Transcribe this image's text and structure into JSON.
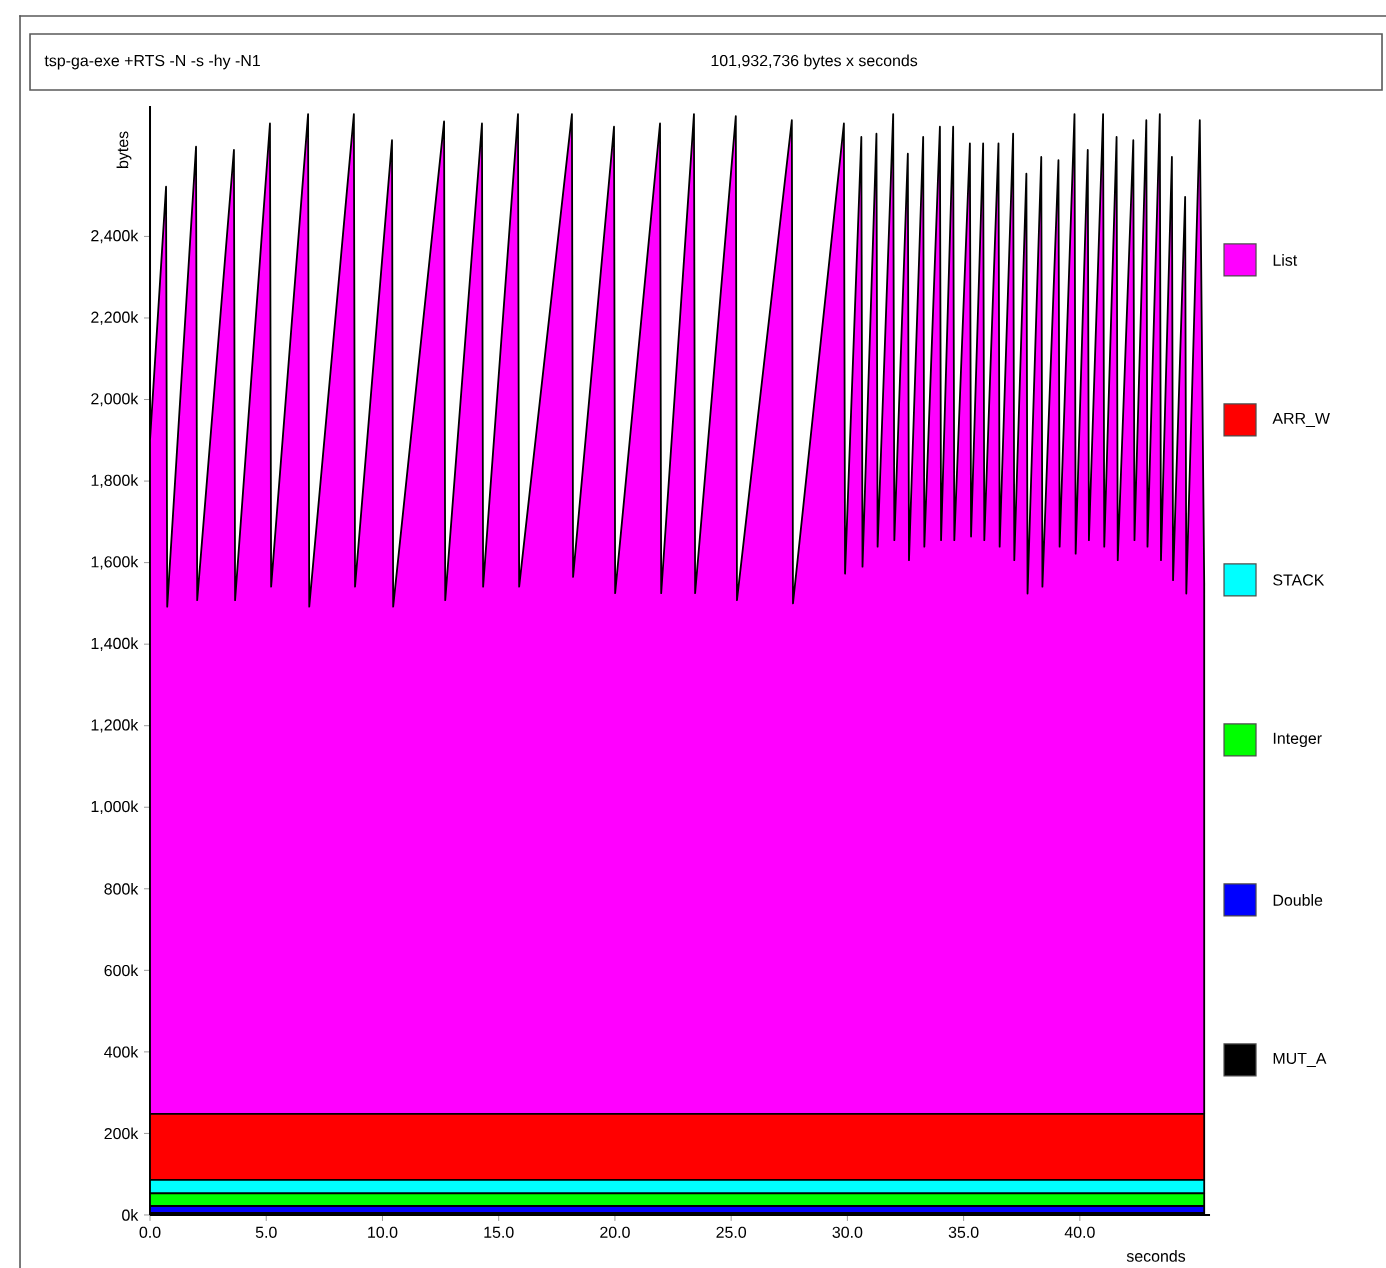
{
  "chart_data": {
    "type": "area",
    "title": "tsp-ga-exe +RTS -N -s -hy -N1",
    "subtitle": "101,932,736 bytes x seconds",
    "xlabel": "seconds",
    "ylabel": "bytes",
    "stacked": true,
    "legend": "right",
    "xlim": [
      0,
      45.6
    ],
    "ylim": [
      0,
      2720000
    ],
    "xticks": [
      {
        "value": 0,
        "label": "0.0"
      },
      {
        "value": 5,
        "label": "5.0"
      },
      {
        "value": 10,
        "label": "10.0"
      },
      {
        "value": 15,
        "label": "15.0"
      },
      {
        "value": 20,
        "label": "20.0"
      },
      {
        "value": 25,
        "label": "25.0"
      },
      {
        "value": 30,
        "label": "30.0"
      },
      {
        "value": 35,
        "label": "35.0"
      },
      {
        "value": 40,
        "label": "40.0"
      }
    ],
    "yticks": [
      {
        "value": 0,
        "label": "0k"
      },
      {
        "value": 200000,
        "label": "200k"
      },
      {
        "value": 400000,
        "label": "400k"
      },
      {
        "value": 600000,
        "label": "600k"
      },
      {
        "value": 800000,
        "label": "800k"
      },
      {
        "value": 1000000,
        "label": "1,000k"
      },
      {
        "value": 1200000,
        "label": "1,200k"
      },
      {
        "value": 1400000,
        "label": "1,400k"
      },
      {
        "value": 1600000,
        "label": "1,600k"
      },
      {
        "value": 1800000,
        "label": "1,800k"
      },
      {
        "value": 2000000,
        "label": "2,000k"
      },
      {
        "value": 2200000,
        "label": "2,200k"
      },
      {
        "value": 2400000,
        "label": "2,400k"
      }
    ],
    "x": [
      0,
      0.69,
      0.74,
      1.98,
      2.03,
      3.61,
      3.66,
      5.16,
      5.21,
      6.8,
      6.85,
      8.77,
      8.82,
      10.41,
      10.46,
      12.65,
      12.7,
      14.28,
      14.33,
      15.83,
      15.88,
      18.15,
      18.2,
      19.96,
      20.01,
      21.94,
      21.99,
      23.4,
      23.45,
      25.2,
      25.25,
      27.61,
      27.66,
      29.85,
      29.9,
      30.6,
      30.65,
      31.25,
      31.3,
      31.97,
      32.02,
      32.6,
      32.65,
      33.26,
      33.31,
      33.98,
      34.03,
      34.55,
      34.6,
      35.27,
      35.32,
      35.84,
      35.89,
      36.5,
      36.55,
      37.13,
      37.18,
      37.7,
      37.75,
      38.34,
      38.39,
      39.08,
      39.13,
      39.77,
      39.82,
      40.34,
      40.39,
      41.0,
      41.05,
      41.58,
      41.63,
      42.3,
      42.35,
      42.86,
      42.91,
      43.44,
      43.49,
      43.96,
      44.01,
      44.53,
      44.58,
      45.16,
      45.35
    ],
    "series": [
      {
        "name": "MUT_A",
        "color": "#000000",
        "values": [
          5000,
          5000,
          5000,
          5000,
          5000,
          5000,
          5000,
          5000,
          5000,
          5000,
          5000,
          5000,
          5000,
          5000,
          5000,
          5000,
          5000,
          5000,
          5000,
          5000,
          5000,
          5000,
          5000,
          5000,
          5000,
          5000,
          5000,
          5000,
          5000,
          5000,
          5000,
          5000,
          5000,
          5000,
          5000,
          5000,
          5000,
          5000,
          5000,
          5000,
          5000,
          5000,
          5000,
          5000,
          5000,
          5000,
          5000,
          5000,
          5000,
          5000,
          5000,
          5000,
          5000,
          5000,
          5000,
          5000,
          5000,
          5000,
          5000,
          5000,
          5000,
          5000,
          5000,
          5000,
          5000,
          5000,
          5000,
          5000,
          5000,
          5000,
          5000,
          5000,
          5000,
          5000,
          5000,
          5000,
          5000,
          5000,
          5000,
          5000,
          5000,
          5000,
          5000
        ]
      },
      {
        "name": "Double",
        "color": "#0000ff",
        "values": [
          17000,
          17000,
          17000,
          17000,
          17000,
          17000,
          17000,
          17000,
          17000,
          17000,
          17000,
          17000,
          17000,
          17000,
          17000,
          17000,
          17000,
          17000,
          17000,
          17000,
          17000,
          17000,
          17000,
          17000,
          17000,
          17000,
          17000,
          17000,
          17000,
          17000,
          17000,
          17000,
          17000,
          17000,
          17000,
          17000,
          17000,
          17000,
          17000,
          17000,
          17000,
          17000,
          17000,
          17000,
          17000,
          17000,
          17000,
          17000,
          17000,
          17000,
          17000,
          17000,
          17000,
          17000,
          17000,
          17000,
          17000,
          17000,
          17000,
          17000,
          17000,
          17000,
          17000,
          17000,
          17000,
          17000,
          17000,
          17000,
          17000,
          17000,
          17000,
          17000,
          17000,
          17000,
          17000,
          17000,
          17000,
          17000,
          17000,
          17000,
          17000,
          17000,
          17000
        ]
      },
      {
        "name": "Integer",
        "color": "#00ff00",
        "values": [
          31000,
          31000,
          31000,
          31000,
          31000,
          31000,
          31000,
          31000,
          31000,
          31000,
          31000,
          31000,
          31000,
          31000,
          31000,
          31000,
          31000,
          31000,
          31000,
          31000,
          31000,
          31000,
          31000,
          31000,
          31000,
          31000,
          31000,
          31000,
          31000,
          31000,
          31000,
          31000,
          31000,
          31000,
          31000,
          31000,
          31000,
          31000,
          31000,
          31000,
          31000,
          31000,
          31000,
          31000,
          31000,
          31000,
          31000,
          31000,
          31000,
          31000,
          31000,
          31000,
          31000,
          31000,
          31000,
          31000,
          31000,
          31000,
          31000,
          31000,
          31000,
          31000,
          31000,
          31000,
          31000,
          31000,
          31000,
          31000,
          31000,
          31000,
          31000,
          31000,
          31000,
          31000,
          31000,
          31000,
          31000,
          31000,
          31000,
          31000,
          31000,
          31000,
          31000
        ]
      },
      {
        "name": "STACK",
        "color": "#00ffff",
        "values": [
          33000,
          33000,
          33000,
          33000,
          33000,
          33000,
          33000,
          33000,
          33000,
          33000,
          33000,
          33000,
          33000,
          33000,
          33000,
          33000,
          33000,
          33000,
          33000,
          33000,
          33000,
          33000,
          33000,
          33000,
          33000,
          33000,
          33000,
          33000,
          33000,
          33000,
          33000,
          33000,
          33000,
          33000,
          33000,
          33000,
          33000,
          33000,
          33000,
          33000,
          33000,
          33000,
          33000,
          33000,
          33000,
          33000,
          33000,
          33000,
          33000,
          33000,
          33000,
          33000,
          33000,
          33000,
          33000,
          33000,
          33000,
          33000,
          33000,
          33000,
          33000,
          33000,
          33000,
          33000,
          33000,
          33000,
          33000,
          33000,
          33000,
          33000,
          33000,
          33000,
          33000,
          33000,
          33000,
          33000,
          33000,
          33000,
          33000,
          33000,
          33000,
          33000,
          33000
        ]
      },
      {
        "name": "ARR_W",
        "color": "#ff0000",
        "values": [
          162000,
          162000,
          162000,
          162000,
          162000,
          162000,
          162000,
          162000,
          162000,
          162000,
          162000,
          162000,
          162000,
          162000,
          162000,
          162000,
          162000,
          162000,
          162000,
          162000,
          162000,
          162000,
          162000,
          162000,
          162000,
          162000,
          162000,
          162000,
          162000,
          162000,
          162000,
          162000,
          162000,
          162000,
          162000,
          162000,
          162000,
          162000,
          162000,
          162000,
          162000,
          162000,
          162000,
          162000,
          162000,
          162000,
          162000,
          162000,
          162000,
          162000,
          162000,
          162000,
          162000,
          162000,
          162000,
          162000,
          162000,
          162000,
          162000,
          162000,
          162000,
          162000,
          162000,
          162000,
          162000,
          162000,
          162000,
          162000,
          162000,
          162000,
          162000,
          162000,
          162000,
          162000,
          162000,
          162000,
          162000,
          162000,
          162000,
          162000,
          162000,
          162000,
          162000
        ]
      },
      {
        "name": "List",
        "color": "#ff00ff",
        "values": [
          1652000,
          2274000,
          1244000,
          2372000,
          1260000,
          2364000,
          1260000,
          2429000,
          1293000,
          2452000,
          1244000,
          2452000,
          1293000,
          2388000,
          1244000,
          2434000,
          1260000,
          2429000,
          1293000,
          2452000,
          1293000,
          2452000,
          1317000,
          2421000,
          1277000,
          2429000,
          1277000,
          2452000,
          1277000,
          2447000,
          1260000,
          2437000,
          1252000,
          2429000,
          1325000,
          2396000,
          1342000,
          2404000,
          1391000,
          2452000,
          1407000,
          2355000,
          1358000,
          2396000,
          1391000,
          2421000,
          1407000,
          2421000,
          1407000,
          2380000,
          1416000,
          2380000,
          1407000,
          2380000,
          1391000,
          2404000,
          1358000,
          2306000,
          1276000,
          2347000,
          1293000,
          2339000,
          1391000,
          2452000,
          1374000,
          2364000,
          1407000,
          2452000,
          1391000,
          2396000,
          1358000,
          2388000,
          1407000,
          2437000,
          1391000,
          2452000,
          1358000,
          2347000,
          1309000,
          2249000,
          1276000,
          2437000,
          1302000
        ]
      }
    ]
  }
}
